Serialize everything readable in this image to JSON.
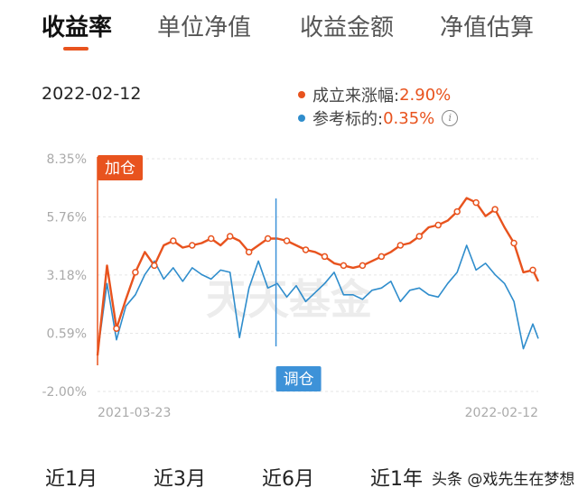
{
  "tabs": [
    {
      "label": "收益率",
      "active": true
    },
    {
      "label": "单位净值",
      "active": false
    },
    {
      "label": "收益金额",
      "active": false
    },
    {
      "label": "净值估算",
      "active": false
    }
  ],
  "date_label": "2022-02-12",
  "legend": {
    "fund_label": "成立来涨幅:",
    "fund_value": "2.90%",
    "bench_label": "参考标的:",
    "bench_value": "0.35%"
  },
  "colors": {
    "fund": "#e8531e",
    "benchmark": "#2f8dcc",
    "accent": "#e8531e",
    "tag_buy": "#e8531e",
    "tag_adjust": "#3d92d8"
  },
  "tags": {
    "buy": "加仓",
    "adjust": "调仓"
  },
  "watermark": "天天基金",
  "chart_data": {
    "type": "line",
    "x_start": "2021-03-23",
    "x_end": "2022-02-12",
    "x_tick_labels": [
      "2021-03-23",
      "2022-02-12"
    ],
    "y_ticks": [
      "8.35%",
      "5.76%",
      "3.18%",
      "0.59%",
      "-2.00%"
    ],
    "y_tick_values": [
      8.35,
      5.76,
      3.18,
      0.59,
      -2.0
    ],
    "ylim": [
      -2.0,
      8.35
    ],
    "grid": true,
    "annotations": [
      {
        "label": "加仓",
        "date": "2021-03-23"
      },
      {
        "label": "调仓",
        "date": "2021-08-02"
      }
    ],
    "series": [
      {
        "name": "成立来涨幅",
        "x": [
          "2021-03-23",
          "2021-03-30",
          "2021-04-06",
          "2021-04-13",
          "2021-04-20",
          "2021-04-27",
          "2021-05-04",
          "2021-05-11",
          "2021-05-18",
          "2021-05-25",
          "2021-06-01",
          "2021-06-08",
          "2021-06-15",
          "2021-06-22",
          "2021-06-29",
          "2021-07-06",
          "2021-07-13",
          "2021-07-20",
          "2021-07-27",
          "2021-08-03",
          "2021-08-10",
          "2021-08-17",
          "2021-08-24",
          "2021-08-31",
          "2021-09-07",
          "2021-09-14",
          "2021-09-21",
          "2021-09-28",
          "2021-10-05",
          "2021-10-12",
          "2021-10-19",
          "2021-10-26",
          "2021-11-02",
          "2021-11-09",
          "2021-11-16",
          "2021-11-23",
          "2021-11-30",
          "2021-12-07",
          "2021-12-14",
          "2021-12-21",
          "2021-12-28",
          "2022-01-04",
          "2022-01-11",
          "2022-01-18",
          "2022-01-25",
          "2022-02-01",
          "2022-02-08",
          "2022-02-12"
        ],
        "values": [
          -0.4,
          3.6,
          0.8,
          2.1,
          3.3,
          4.2,
          3.6,
          4.5,
          4.7,
          4.4,
          4.5,
          4.6,
          4.8,
          4.5,
          4.9,
          4.7,
          4.2,
          4.5,
          4.8,
          4.8,
          4.7,
          4.5,
          4.3,
          4.2,
          4.0,
          3.7,
          3.6,
          3.5,
          3.6,
          3.8,
          4.0,
          4.2,
          4.5,
          4.6,
          4.9,
          5.3,
          5.4,
          5.6,
          6.0,
          6.6,
          6.4,
          5.8,
          6.1,
          5.3,
          4.6,
          3.3,
          3.4,
          2.9
        ]
      },
      {
        "name": "参考标的",
        "x": [
          "2021-03-23",
          "2021-03-30",
          "2021-04-06",
          "2021-04-13",
          "2021-04-20",
          "2021-04-27",
          "2021-05-04",
          "2021-05-11",
          "2021-05-18",
          "2021-05-25",
          "2021-06-01",
          "2021-06-08",
          "2021-06-15",
          "2021-06-22",
          "2021-06-29",
          "2021-07-06",
          "2021-07-13",
          "2021-07-20",
          "2021-07-27",
          "2021-08-03",
          "2021-08-10",
          "2021-08-17",
          "2021-08-24",
          "2021-08-31",
          "2021-09-07",
          "2021-09-14",
          "2021-09-21",
          "2021-09-28",
          "2021-10-05",
          "2021-10-12",
          "2021-10-19",
          "2021-10-26",
          "2021-11-02",
          "2021-11-09",
          "2021-11-16",
          "2021-11-23",
          "2021-11-30",
          "2021-12-07",
          "2021-12-14",
          "2021-12-21",
          "2021-12-28",
          "2022-01-04",
          "2022-01-11",
          "2022-01-18",
          "2022-01-25",
          "2022-02-01",
          "2022-02-08",
          "2022-02-12"
        ],
        "values": [
          -0.3,
          2.8,
          0.3,
          1.8,
          2.3,
          3.2,
          3.8,
          3.0,
          3.5,
          2.9,
          3.5,
          3.2,
          3.0,
          3.4,
          3.3,
          0.4,
          2.6,
          3.8,
          2.6,
          2.8,
          2.2,
          2.7,
          2.0,
          2.4,
          2.8,
          3.3,
          2.3,
          2.3,
          2.1,
          2.5,
          2.6,
          2.9,
          2.0,
          2.5,
          2.6,
          2.3,
          2.2,
          2.8,
          3.3,
          4.5,
          3.4,
          3.7,
          3.2,
          2.8,
          2.0,
          -0.1,
          1.0,
          0.35
        ]
      }
    ]
  },
  "ranges": [
    "近1月",
    "近3月",
    "近6月",
    "近1年"
  ],
  "footer_watermark": "头条 @戏先生在梦想"
}
